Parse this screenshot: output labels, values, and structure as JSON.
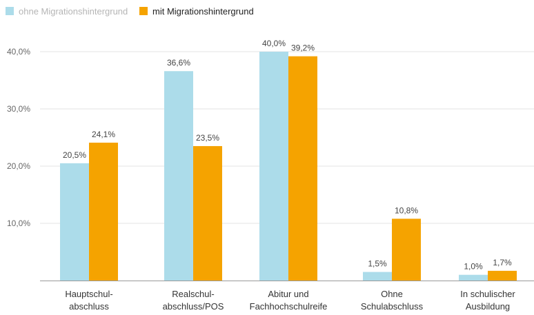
{
  "chart_data": {
    "type": "bar",
    "title": "",
    "xlabel": "",
    "ylabel": "",
    "categories": [
      [
        "Hauptschul-",
        "abschluss"
      ],
      [
        "Realschul-",
        "abschluss/POS"
      ],
      [
        "Abitur und",
        "Fachhochschulreife"
      ],
      [
        "Ohne",
        "Schulabschluss"
      ],
      [
        "In schulischer",
        "Ausbildung"
      ]
    ],
    "series": [
      {
        "name": "ohne Migrationshintergrund",
        "color": "#acdcea",
        "values": [
          20.5,
          36.6,
          40.0,
          1.5,
          1.0
        ],
        "labels": [
          "20,5%",
          "36,6%",
          "40,0%",
          "1,5%",
          "1,0%"
        ]
      },
      {
        "name": "mit Migrationshintergrund",
        "color": "#f5a300",
        "values": [
          24.1,
          23.5,
          39.2,
          10.8,
          1.7
        ],
        "labels": [
          "24,1%",
          "23,5%",
          "39,2%",
          "10,8%",
          "1,7%"
        ]
      }
    ],
    "ylim": [
      0,
      40
    ],
    "yticks": [
      10,
      20,
      30,
      40
    ],
    "ytick_labels": [
      "10,0%",
      "20,0%",
      "30,0%",
      "40,0%"
    ],
    "grid": true,
    "legend_position": "top-left"
  }
}
